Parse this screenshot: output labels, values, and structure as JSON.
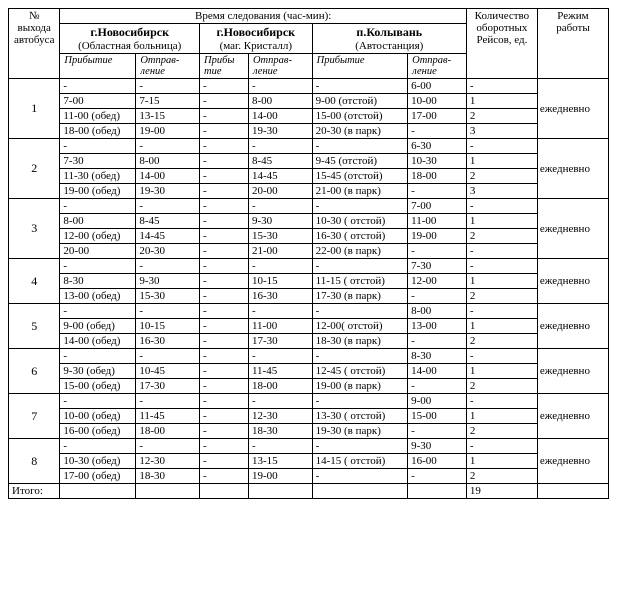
{
  "headers": {
    "bus_no": "№ выхода автобуса",
    "travel_time": "Время следования  (час-мин):",
    "turns": "Количество оборотных Рейсов, ед.",
    "mode": "Режим работы",
    "stop1_name": "г.Новосибирск",
    "stop1_sub": "(Областная больница)",
    "stop2_name": "г.Новосибирск",
    "stop2_sub": "(маг. Кристалл)",
    "stop3_name": "п.Колывань",
    "stop3_sub": "(Автостанция)",
    "arrival": "Прибы­тие",
    "departure": "Отправ­ление",
    "arrival_short": "Прибы тие",
    "departure_short": "Отправ­ление"
  },
  "groups": [
    {
      "num": "1",
      "mode": "ежедневно",
      "rows": [
        {
          "a1": "-",
          "d1": "-",
          "a2": "-",
          "d2": "-",
          "a3": "-",
          "d3": "6-00",
          "t": "-"
        },
        {
          "a1": "7-00",
          "d1": "7-15",
          "a2": "-",
          "d2": "8-00",
          "a3": "9-00  (отстой)",
          "d3": "10-00",
          "t": "1"
        },
        {
          "a1": "11-00 (обед)",
          "d1": "13-15",
          "a2": "-",
          "d2": "14-00",
          "a3": "15-00 (отстой)",
          "d3": "17-00",
          "t": "2"
        },
        {
          "a1": "18-00 (обед)",
          "d1": "19-00",
          "a2": "-",
          "d2": "19-30",
          "a3": "20-30 (в парк)",
          "d3": "-",
          "t": "3"
        }
      ]
    },
    {
      "num": "2",
      "mode": "ежедневно",
      "rows": [
        {
          "a1": "-",
          "d1": "-",
          "a2": "-",
          "d2": "-",
          "a3": "-",
          "d3": "6-30",
          "t": "-"
        },
        {
          "a1": "7-30",
          "d1": "8-00",
          "a2": "-",
          "d2": "8-45",
          "a3": "9-45  (отстой)",
          "d3": "10-30",
          "t": "1"
        },
        {
          "a1": "11-30 (обед)",
          "d1": "14-00",
          "a2": "-",
          "d2": "14-45",
          "a3": "15-45 (отстой)",
          "d3": "18-00",
          "t": "2"
        },
        {
          "a1": "19-00 (обед)",
          "d1": "19-30",
          "a2": "-",
          "d2": "20-00",
          "a3": "21-00 (в парк)",
          "d3": "-",
          "t": "3"
        }
      ]
    },
    {
      "num": "3",
      "mode": "ежедневно",
      "rows": [
        {
          "a1": "-",
          "d1": "-",
          "a2": "-",
          "d2": "-",
          "a3": "-",
          "d3": "7-00",
          "t": "-"
        },
        {
          "a1": "8-00",
          "d1": "8-45",
          "a2": "-",
          "d2": "9-30",
          "a3": "10-30        ( отстой)",
          "d3": "11-00",
          "t": "1"
        },
        {
          "a1": "12-00 (обед)",
          "d1": "14-45",
          "a2": "-",
          "d2": "15-30",
          "a3": "16-30        ( отстой)",
          "d3": "19-00",
          "t": "2"
        },
        {
          "a1": "20-00",
          "d1": "20-30",
          "a2": "-",
          "d2": "21-00",
          "a3": "22-00 (в парк)",
          "d3": "-",
          "t": "-"
        }
      ]
    },
    {
      "num": "4",
      "mode": "ежедневно",
      "rows": [
        {
          "a1": "-",
          "d1": "-",
          "a2": "-",
          "d2": "-",
          "a3": "-",
          "d3": "7-30",
          "t": "-"
        },
        {
          "a1": "8-30",
          "d1": "9-30",
          "a2": "-",
          "d2": "10-15",
          "a3": "11-15        ( отстой)",
          "d3": "12-00",
          "t": "1"
        },
        {
          "a1": "13-00 (обед)",
          "d1": "15-30",
          "a2": "-",
          "d2": "16-30",
          "a3": "17-30 (в парк)",
          "d3": "-",
          "t": "2"
        }
      ]
    },
    {
      "num": "5",
      "mode": "ежедневно",
      "rows": [
        {
          "a1": "-",
          "d1": "-",
          "a2": "-",
          "d2": "-",
          "a3": "-",
          "d3": "8-00",
          "t": "-"
        },
        {
          "a1": "9-00 (обед)",
          "d1": "10-15",
          "a2": "-",
          "d2": "11-00",
          "a3": "12-00( отстой)",
          "d3": "13-00",
          "t": "1"
        },
        {
          "a1": "14-00 (обед)",
          "d1": "16-30",
          "a2": "-",
          "d2": "17-30",
          "a3": "18-30 (в парк)",
          "d3": "-",
          "t": "2"
        }
      ]
    },
    {
      "num": "6",
      "mode": "ежедневно",
      "rows": [
        {
          "a1": "-",
          "d1": "-",
          "a2": "-",
          "d2": "-",
          "a3": "-",
          "d3": "8-30",
          "t": "-"
        },
        {
          "a1": "9-30 (обед)",
          "d1": "10-45",
          "a2": "-",
          "d2": "11-45",
          "a3": "12-45        ( отстой)",
          "d3": "14-00",
          "t": "1"
        },
        {
          "a1": "15-00 (обед)",
          "d1": "17-30",
          "a2": "-",
          "d2": "18-00",
          "a3": "19-00 (в парк)",
          "d3": "-",
          "t": "2"
        }
      ]
    },
    {
      "num": "7",
      "mode": "ежедневно",
      "rows": [
        {
          "a1": "-",
          "d1": "-",
          "a2": "-",
          "d2": "-",
          "a3": "-",
          "d3": "9-00",
          "t": "-"
        },
        {
          "a1": "10-00 (обед)",
          "d1": "11-45",
          "a2": "-",
          "d2": "12-30",
          "a3": "13-30        ( отстой)",
          "d3": "15-00",
          "t": "1"
        },
        {
          "a1": "16-00 (обед)",
          "d1": "18-00",
          "a2": "-",
          "d2": "18-30",
          "a3": "19-30 (в парк)",
          "d3": "-",
          "t": "2"
        }
      ]
    },
    {
      "num": "8",
      "mode": "ежедневно",
      "rows": [
        {
          "a1": "-",
          "d1": "-",
          "a2": "-",
          "d2": "-",
          "a3": "-",
          "d3": "9-30",
          "t": "-"
        },
        {
          "a1": "10-30 (обед)",
          "d1": "12-30",
          "a2": "-",
          "d2": "13-15",
          "a3": "14-15        ( отстой)",
          "d3": "16-00",
          "t": "1"
        },
        {
          "a1": "17-00 (обед)",
          "d1": "18-30",
          "a2": "-",
          "d2": "19-00",
          "a3": "-",
          "d3": "-",
          "t": "2"
        }
      ]
    }
  ],
  "total": {
    "label": "Итого:",
    "value": "19"
  }
}
